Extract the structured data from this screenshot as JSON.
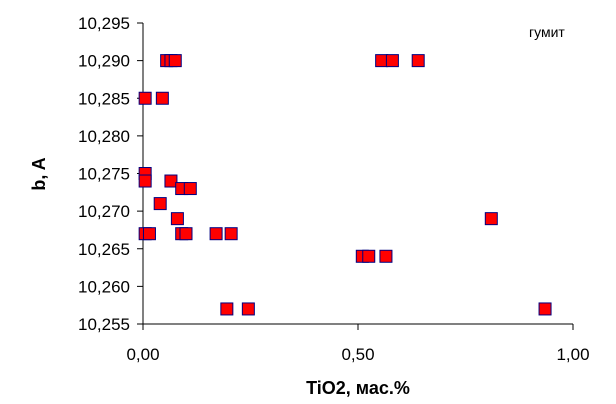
{
  "chart_data": {
    "type": "scatter",
    "title": "",
    "xlabel": "TiO2, мас.%",
    "ylabel": "b, A",
    "xlim": [
      0,
      1
    ],
    "ylim": [
      10.255,
      10.295
    ],
    "x_ticks": [
      0,
      0.5,
      1
    ],
    "x_tick_labels": [
      "0,00",
      "0,50",
      "1,00"
    ],
    "y_ticks": [
      10.255,
      10.26,
      10.265,
      10.27,
      10.275,
      10.28,
      10.285,
      10.29,
      10.295
    ],
    "y_tick_labels": [
      "10,255",
      "10,260",
      "10,265",
      "10,270",
      "10,275",
      "10,280",
      "10,285",
      "10,290",
      "10,295"
    ],
    "grid": false,
    "legend_placement": "top-right",
    "marker": "square",
    "marker_fill": "#ff0000",
    "marker_edge": "#000080",
    "axis_color": "#000000",
    "series": [
      {
        "name": "гумит",
        "points": [
          [
            0.055,
            10.29
          ],
          [
            0.065,
            10.29
          ],
          [
            0.075,
            10.29
          ],
          [
            0.555,
            10.29
          ],
          [
            0.58,
            10.29
          ],
          [
            0.64,
            10.29
          ],
          [
            0.005,
            10.285
          ],
          [
            0.045,
            10.285
          ],
          [
            0.005,
            10.275
          ],
          [
            0.005,
            10.274
          ],
          [
            0.065,
            10.274
          ],
          [
            0.09,
            10.273
          ],
          [
            0.11,
            10.273
          ],
          [
            0.04,
            10.271
          ],
          [
            0.08,
            10.269
          ],
          [
            0.81,
            10.269
          ],
          [
            0.005,
            10.267
          ],
          [
            0.015,
            10.267
          ],
          [
            0.09,
            10.267
          ],
          [
            0.1,
            10.267
          ],
          [
            0.17,
            10.267
          ],
          [
            0.205,
            10.267
          ],
          [
            0.51,
            10.264
          ],
          [
            0.525,
            10.264
          ],
          [
            0.565,
            10.264
          ],
          [
            0.195,
            10.257
          ],
          [
            0.245,
            10.257
          ],
          [
            0.935,
            10.257
          ]
        ]
      }
    ]
  }
}
